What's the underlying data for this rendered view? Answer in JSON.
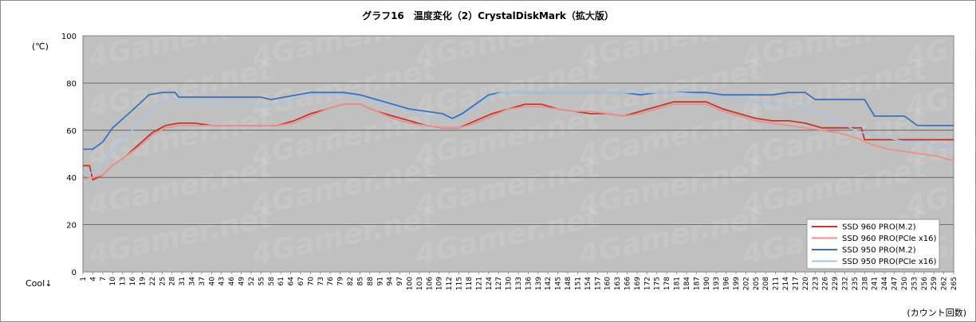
{
  "chart_data": {
    "type": "line",
    "title": "グラフ16　温度変化（2）CrystalDiskMark（拡大版）",
    "unit_label": "(℃)",
    "cool_label": "Cool↓",
    "xlabel": "(カウント回数)",
    "watermark": "4Gamer.net",
    "ylim": [
      0,
      100
    ],
    "yticks": [
      0,
      20,
      40,
      60,
      80,
      100
    ],
    "xlim": [
      1,
      265
    ],
    "x_tick_start": 1,
    "x_tick_step": 3,
    "grid": true,
    "legend_position": "bottom-right",
    "colors": {
      "plot_bg": "#c0c0c0",
      "grid": "#555555"
    },
    "series": [
      {
        "name": "SSD 960 PRO(M.2)",
        "color": "#c0392b",
        "points": [
          [
            1,
            45
          ],
          [
            3,
            45
          ],
          [
            4,
            39
          ],
          [
            7,
            41
          ],
          [
            10,
            45
          ],
          [
            14,
            49
          ],
          [
            18,
            54
          ],
          [
            22,
            59
          ],
          [
            26,
            62
          ],
          [
            30,
            63
          ],
          [
            35,
            63
          ],
          [
            40,
            62
          ],
          [
            45,
            62
          ],
          [
            50,
            62
          ],
          [
            55,
            62
          ],
          [
            60,
            62
          ],
          [
            65,
            64
          ],
          [
            70,
            67
          ],
          [
            75,
            69
          ],
          [
            80,
            71
          ],
          [
            85,
            71
          ],
          [
            90,
            68
          ],
          [
            95,
            66
          ],
          [
            100,
            64
          ],
          [
            105,
            62
          ],
          [
            110,
            61
          ],
          [
            115,
            61
          ],
          [
            120,
            64
          ],
          [
            125,
            67
          ],
          [
            130,
            69
          ],
          [
            135,
            71
          ],
          [
            140,
            71
          ],
          [
            145,
            69
          ],
          [
            150,
            68
          ],
          [
            155,
            67
          ],
          [
            160,
            67
          ],
          [
            165,
            66
          ],
          [
            170,
            68
          ],
          [
            175,
            70
          ],
          [
            180,
            72
          ],
          [
            185,
            72
          ],
          [
            190,
            72
          ],
          [
            195,
            69
          ],
          [
            200,
            67
          ],
          [
            205,
            65
          ],
          [
            210,
            64
          ],
          [
            215,
            64
          ],
          [
            220,
            63
          ],
          [
            225,
            61
          ],
          [
            230,
            61
          ],
          [
            237,
            61
          ],
          [
            238,
            56
          ],
          [
            250,
            56
          ],
          [
            265,
            56
          ]
        ]
      },
      {
        "name": "SSD 960 PRO(PCIe x16)",
        "color": "#ec8f8f",
        "points": [
          [
            1,
            39
          ],
          [
            3,
            40
          ],
          [
            4,
            40
          ],
          [
            7,
            41
          ],
          [
            10,
            45
          ],
          [
            14,
            49
          ],
          [
            18,
            53
          ],
          [
            22,
            58
          ],
          [
            26,
            61
          ],
          [
            30,
            62
          ],
          [
            35,
            62
          ],
          [
            40,
            62
          ],
          [
            45,
            62
          ],
          [
            50,
            62
          ],
          [
            55,
            62
          ],
          [
            60,
            62
          ],
          [
            65,
            63
          ],
          [
            70,
            66
          ],
          [
            75,
            69
          ],
          [
            80,
            71
          ],
          [
            85,
            71
          ],
          [
            90,
            68
          ],
          [
            95,
            65
          ],
          [
            100,
            63
          ],
          [
            105,
            62
          ],
          [
            110,
            61
          ],
          [
            115,
            61
          ],
          [
            120,
            63
          ],
          [
            125,
            66
          ],
          [
            130,
            69
          ],
          [
            135,
            70
          ],
          [
            140,
            70
          ],
          [
            145,
            69
          ],
          [
            150,
            68
          ],
          [
            155,
            68
          ],
          [
            160,
            67
          ],
          [
            165,
            66
          ],
          [
            170,
            67
          ],
          [
            175,
            69
          ],
          [
            180,
            71
          ],
          [
            185,
            71
          ],
          [
            190,
            71
          ],
          [
            195,
            68
          ],
          [
            200,
            66
          ],
          [
            205,
            64
          ],
          [
            210,
            63
          ],
          [
            215,
            62
          ],
          [
            220,
            61
          ],
          [
            225,
            60
          ],
          [
            230,
            59
          ],
          [
            235,
            57
          ],
          [
            240,
            54
          ],
          [
            245,
            52
          ],
          [
            250,
            51
          ],
          [
            255,
            50
          ],
          [
            260,
            49
          ],
          [
            265,
            47
          ]
        ]
      },
      {
        "name": "SSD 950 PRO(M.2)",
        "color": "#3d72b8",
        "points": [
          [
            1,
            52
          ],
          [
            4,
            52
          ],
          [
            7,
            55
          ],
          [
            10,
            61
          ],
          [
            14,
            66
          ],
          [
            18,
            71
          ],
          [
            21,
            75
          ],
          [
            25,
            76
          ],
          [
            29,
            76
          ],
          [
            30,
            74
          ],
          [
            40,
            74
          ],
          [
            50,
            74
          ],
          [
            55,
            74
          ],
          [
            58,
            73
          ],
          [
            62,
            74
          ],
          [
            66,
            75
          ],
          [
            70,
            76
          ],
          [
            75,
            76
          ],
          [
            80,
            76
          ],
          [
            85,
            75
          ],
          [
            90,
            73
          ],
          [
            95,
            71
          ],
          [
            100,
            69
          ],
          [
            105,
            68
          ],
          [
            110,
            67
          ],
          [
            113,
            65
          ],
          [
            116,
            67
          ],
          [
            120,
            71
          ],
          [
            124,
            75
          ],
          [
            128,
            76
          ],
          [
            135,
            76
          ],
          [
            140,
            76
          ],
          [
            145,
            76
          ],
          [
            150,
            76
          ],
          [
            155,
            76
          ],
          [
            160,
            76
          ],
          [
            165,
            76
          ],
          [
            170,
            75
          ],
          [
            175,
            76
          ],
          [
            180,
            76
          ],
          [
            185,
            76
          ],
          [
            190,
            76
          ],
          [
            195,
            75
          ],
          [
            200,
            75
          ],
          [
            205,
            75
          ],
          [
            210,
            75
          ],
          [
            215,
            76
          ],
          [
            220,
            76
          ],
          [
            223,
            73
          ],
          [
            230,
            73
          ],
          [
            238,
            73
          ],
          [
            241,
            66
          ],
          [
            250,
            66
          ],
          [
            254,
            62
          ],
          [
            265,
            62
          ]
        ]
      },
      {
        "name": "SSD 950 PRO(PCIe x16)",
        "color": "#a7c4e5",
        "points": [
          [
            1,
            42
          ],
          [
            4,
            42
          ],
          [
            7,
            46
          ],
          [
            10,
            51
          ],
          [
            14,
            57
          ],
          [
            18,
            63
          ],
          [
            22,
            68
          ],
          [
            26,
            73
          ],
          [
            28,
            74
          ],
          [
            30,
            72
          ],
          [
            40,
            72
          ],
          [
            45,
            71
          ],
          [
            50,
            71
          ],
          [
            55,
            70
          ],
          [
            60,
            71
          ],
          [
            65,
            73
          ],
          [
            70,
            75
          ],
          [
            75,
            75
          ],
          [
            80,
            75
          ],
          [
            85,
            74
          ],
          [
            90,
            72
          ],
          [
            95,
            70
          ],
          [
            100,
            68
          ],
          [
            105,
            66
          ],
          [
            110,
            65
          ],
          [
            113,
            64
          ],
          [
            116,
            66
          ],
          [
            120,
            70
          ],
          [
            124,
            74
          ],
          [
            128,
            76
          ],
          [
            135,
            76
          ],
          [
            140,
            76
          ],
          [
            150,
            76
          ],
          [
            160,
            76
          ],
          [
            170,
            76
          ],
          [
            180,
            76
          ],
          [
            190,
            75
          ],
          [
            200,
            73
          ],
          [
            205,
            72
          ],
          [
            210,
            71
          ],
          [
            215,
            71
          ],
          [
            220,
            70
          ],
          [
            225,
            67
          ],
          [
            230,
            64
          ],
          [
            235,
            60
          ],
          [
            240,
            58
          ],
          [
            245,
            57
          ],
          [
            250,
            55
          ],
          [
            255,
            55
          ],
          [
            258,
            54
          ],
          [
            260,
            53
          ],
          [
            265,
            53
          ]
        ]
      }
    ]
  }
}
